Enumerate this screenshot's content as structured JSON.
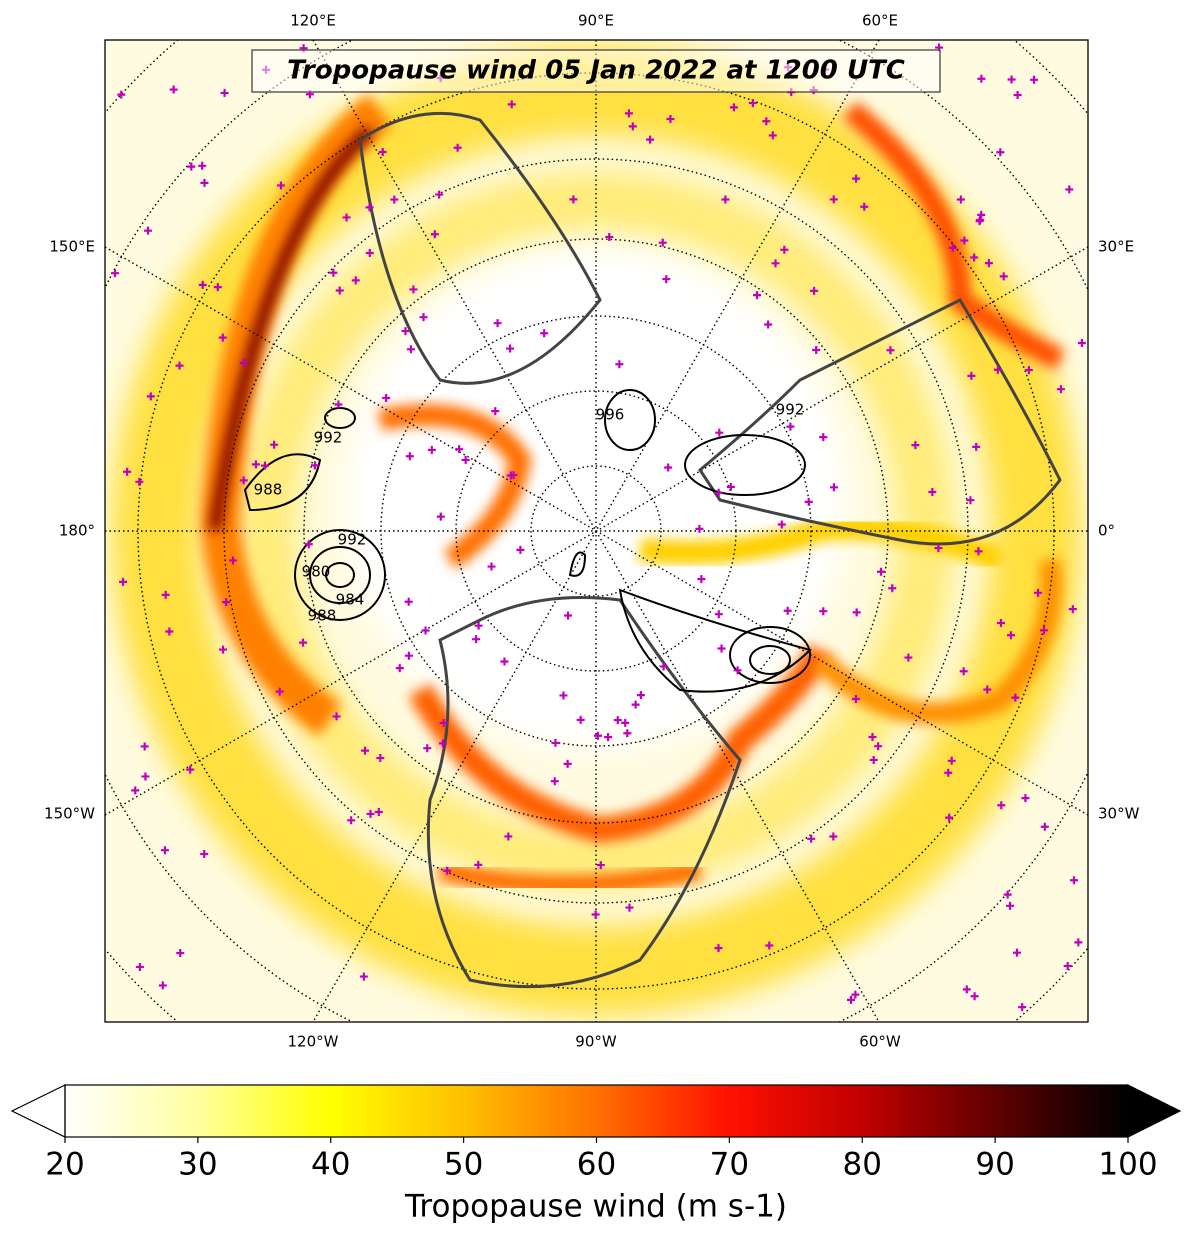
{
  "map": {
    "title": "Tropopause wind 05 Jan 2022 at 1200 UTC",
    "graticule_labels": {
      "top": [
        "120°E",
        "90°E",
        "60°E"
      ],
      "left": [
        "150°E",
        "180°",
        "150°W"
      ],
      "right": [
        "30°E",
        "0°",
        "30°W"
      ],
      "bottom": [
        "120°W",
        "90°W",
        "60°W"
      ]
    },
    "contour_labels": [
      "992",
      "988",
      "992",
      "980",
      "984",
      "988",
      "996",
      "992"
    ]
  },
  "colorbar": {
    "label": "Tropopause wind (m s-1)",
    "lim": [
      20,
      100
    ],
    "ticks": [
      20,
      30,
      40,
      50,
      60,
      70,
      80,
      90,
      100
    ],
    "extend": "both"
  }
}
